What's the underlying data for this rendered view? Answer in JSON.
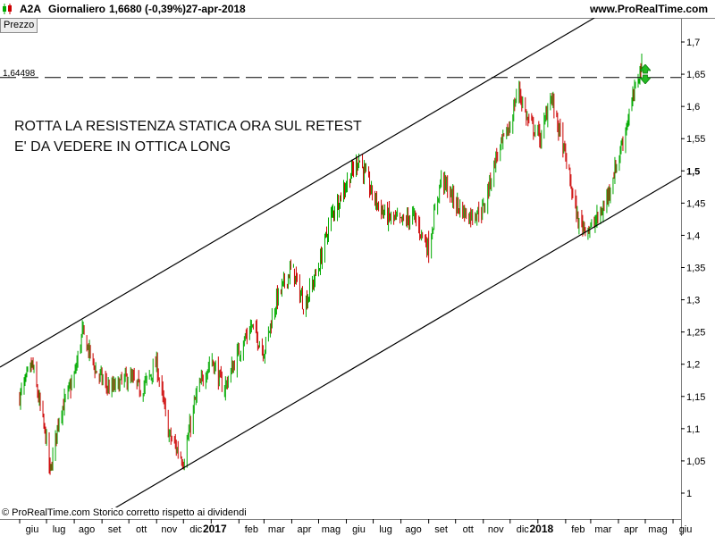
{
  "header": {
    "ticker": "A2A",
    "period": "Giornaliero",
    "price_change": "1,6680 (-0,39%)",
    "date": "27-apr-2018",
    "website": "www.ProRealTime.com"
  },
  "tabs": {
    "price_tab": "Prezzo"
  },
  "annotation": {
    "line1": "ROTTA LA RESISTENZA STATICA ORA SUL RETEST",
    "line2": "E' DA VEDERE IN OTTICA LONG"
  },
  "horizontal_level": {
    "label": "1,64498",
    "value": 1.64498
  },
  "copyright": "© ProRealTime.com  Storico corretto rispetto ai dividendi",
  "colors": {
    "up": "#00aa00",
    "down": "#cc0000",
    "arrow": "#22bb22"
  },
  "chart_data": {
    "type": "candlestick",
    "y_range": [
      0.97,
      1.74
    ],
    "y_ticks": [
      {
        "label": "1",
        "value": 1.0
      },
      {
        "label": "1,05",
        "value": 1.05
      },
      {
        "label": "1,1",
        "value": 1.1
      },
      {
        "label": "1,15",
        "value": 1.15
      },
      {
        "label": "1,2",
        "value": 1.2
      },
      {
        "label": "1,25",
        "value": 1.25
      },
      {
        "label": "1,3",
        "value": 1.3
      },
      {
        "label": "1,35",
        "value": 1.35
      },
      {
        "label": "1,4",
        "value": 1.4
      },
      {
        "label": "1,45",
        "value": 1.45
      },
      {
        "label": "1,5",
        "value": 1.5,
        "bold": true
      },
      {
        "label": "1,55",
        "value": 1.55
      },
      {
        "label": "1,6",
        "value": 1.6
      },
      {
        "label": "1,65",
        "value": 1.65
      },
      {
        "label": "1,7",
        "value": 1.7
      }
    ],
    "x_ticks": [
      {
        "label": "giu"
      },
      {
        "label": "lug"
      },
      {
        "label": "ago"
      },
      {
        "label": "set"
      },
      {
        "label": "ott"
      },
      {
        "label": "nov"
      },
      {
        "label": "dic"
      },
      {
        "label": "2017",
        "bold": true
      },
      {
        "label": "feb"
      },
      {
        "label": "mar"
      },
      {
        "label": "apr"
      },
      {
        "label": "mag"
      },
      {
        "label": "giu"
      },
      {
        "label": "lug"
      },
      {
        "label": "ago"
      },
      {
        "label": "set"
      },
      {
        "label": "ott"
      },
      {
        "label": "nov"
      },
      {
        "label": "dic"
      },
      {
        "label": "2018",
        "bold": true
      },
      {
        "label": "feb"
      },
      {
        "label": "mar"
      },
      {
        "label": "apr"
      },
      {
        "label": "mag"
      },
      {
        "label": "giu"
      }
    ],
    "closes": [
      {
        "date": "2016-06-01",
        "close": 1.15
      },
      {
        "date": "2016-06-15",
        "close": 1.2
      },
      {
        "date": "2016-07-01",
        "close": 1.08
      },
      {
        "date": "2016-07-05",
        "close": 1.03
      },
      {
        "date": "2016-07-15",
        "close": 1.12
      },
      {
        "date": "2016-08-01",
        "close": 1.18
      },
      {
        "date": "2016-08-10",
        "close": 1.25
      },
      {
        "date": "2016-08-25",
        "close": 1.19
      },
      {
        "date": "2016-09-10",
        "close": 1.16
      },
      {
        "date": "2016-10-01",
        "close": 1.18
      },
      {
        "date": "2016-10-15",
        "close": 1.16
      },
      {
        "date": "2016-11-01",
        "close": 1.2
      },
      {
        "date": "2016-11-15",
        "close": 1.09
      },
      {
        "date": "2016-12-01",
        "close": 1.05
      },
      {
        "date": "2016-12-15",
        "close": 1.15
      },
      {
        "date": "2017-01-01",
        "close": 1.21
      },
      {
        "date": "2017-01-15",
        "close": 1.16
      },
      {
        "date": "2017-02-01",
        "close": 1.22
      },
      {
        "date": "2017-02-15",
        "close": 1.26
      },
      {
        "date": "2017-03-01",
        "close": 1.22
      },
      {
        "date": "2017-03-15",
        "close": 1.3
      },
      {
        "date": "2017-04-01",
        "close": 1.35
      },
      {
        "date": "2017-04-15",
        "close": 1.29
      },
      {
        "date": "2017-05-01",
        "close": 1.35
      },
      {
        "date": "2017-05-15",
        "close": 1.43
      },
      {
        "date": "2017-06-01",
        "close": 1.48
      },
      {
        "date": "2017-06-15",
        "close": 1.52
      },
      {
        "date": "2017-07-01",
        "close": 1.46
      },
      {
        "date": "2017-07-15",
        "close": 1.43
      },
      {
        "date": "2017-08-01",
        "close": 1.42
      },
      {
        "date": "2017-08-15",
        "close": 1.43
      },
      {
        "date": "2017-09-01",
        "close": 1.38
      },
      {
        "date": "2017-09-15",
        "close": 1.49
      },
      {
        "date": "2017-10-01",
        "close": 1.45
      },
      {
        "date": "2017-10-15",
        "close": 1.43
      },
      {
        "date": "2017-11-01",
        "close": 1.44
      },
      {
        "date": "2017-11-15",
        "close": 1.52
      },
      {
        "date": "2017-12-01",
        "close": 1.57
      },
      {
        "date": "2017-12-10",
        "close": 1.63
      },
      {
        "date": "2017-12-20",
        "close": 1.58
      },
      {
        "date": "2018-01-05",
        "close": 1.55
      },
      {
        "date": "2018-01-15",
        "close": 1.62
      },
      {
        "date": "2018-02-01",
        "close": 1.52
      },
      {
        "date": "2018-02-15",
        "close": 1.42
      },
      {
        "date": "2018-03-01",
        "close": 1.41
      },
      {
        "date": "2018-03-15",
        "close": 1.44
      },
      {
        "date": "2018-04-01",
        "close": 1.52
      },
      {
        "date": "2018-04-15",
        "close": 1.6
      },
      {
        "date": "2018-04-27",
        "close": 1.668
      }
    ]
  }
}
